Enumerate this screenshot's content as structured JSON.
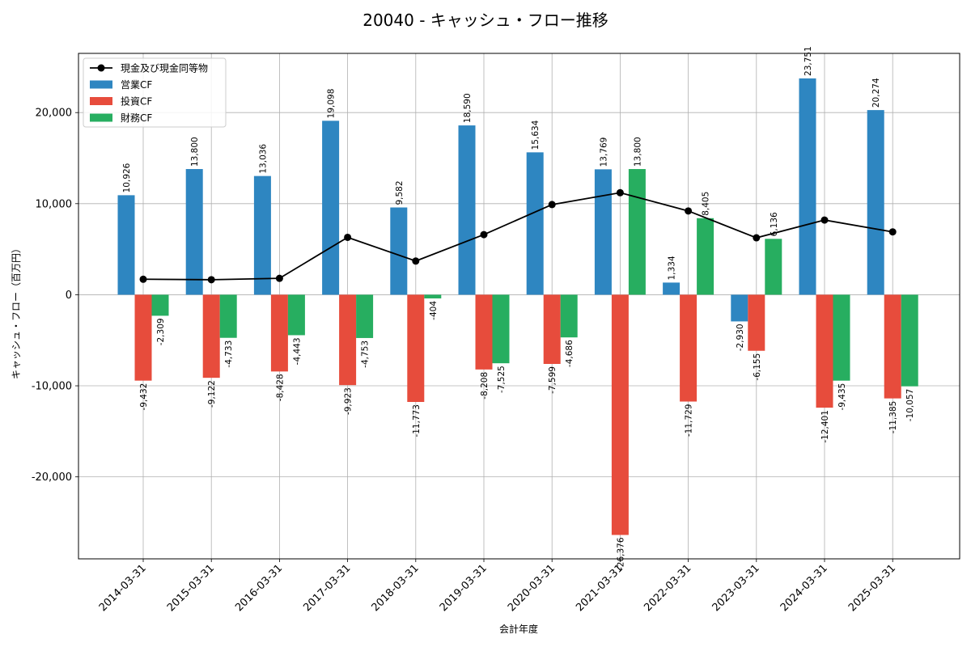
{
  "chart_data": {
    "type": "bar",
    "title": "20040 - キャッシュ・フロー推移",
    "xlabel": "会計年度",
    "ylabel": "キャッシュ・フロー（百万円）",
    "categories": [
      "2014-03-31",
      "2015-03-31",
      "2016-03-31",
      "2017-03-31",
      "2018-03-31",
      "2019-03-31",
      "2020-03-31",
      "2021-03-31",
      "2022-03-31",
      "2023-03-31",
      "2024-03-31",
      "2025-03-31"
    ],
    "series": [
      {
        "name": "営業CF",
        "kind": "bar",
        "color": "#2e86c1",
        "values": [
          10926,
          13800,
          13036,
          19098,
          9582,
          18590,
          15634,
          13769,
          1334,
          -2930,
          23751,
          20274
        ],
        "labels": [
          "10,926",
          "13,800",
          "13,036",
          "19,098",
          "9,582",
          "18,590",
          "15,634",
          "13,769",
          "1,334",
          "-2,930",
          "23,751",
          "20,274"
        ]
      },
      {
        "name": "投資CF",
        "kind": "bar",
        "color": "#e74c3c",
        "values": [
          -9432,
          -9122,
          -8428,
          -9923,
          -11773,
          -8208,
          -7599,
          -26376,
          -11729,
          -6155,
          -12401,
          -11385
        ],
        "labels": [
          "-9,432",
          "-9,122",
          "-8,428",
          "-9,923",
          "-11,773",
          "-8,208",
          "-7,599",
          "-26,376",
          "-11,729",
          "-6,155",
          "-12,401",
          "-11,385"
        ]
      },
      {
        "name": "財務CF",
        "kind": "bar",
        "color": "#27ae60",
        "values": [
          -2309,
          -4733,
          -4443,
          -4753,
          -404,
          -7525,
          -4686,
          13800,
          8405,
          6136,
          -9435,
          -10057
        ],
        "labels": [
          "-2,309",
          "-4,733",
          "-4,443",
          "-4,753",
          "-404",
          "-7,525",
          "-4,686",
          "13,800",
          "8,405",
          "6,136",
          "-9,435",
          "-10,057"
        ]
      },
      {
        "name": "現金及び現金同等物",
        "kind": "line",
        "color": "#000000",
        "values": [
          1700,
          1650,
          1800,
          6300,
          3700,
          6600,
          9900,
          11200,
          9200,
          6250,
          8200,
          6900
        ]
      }
    ],
    "ylim": [
      -29000,
      26500
    ],
    "yticks": [
      -20000,
      -10000,
      0,
      10000,
      20000
    ],
    "ytick_labels": [
      "-20,000",
      "-10,000",
      "0",
      "10,000",
      "20,000"
    ],
    "grid": true,
    "legend_position": "top-left"
  }
}
